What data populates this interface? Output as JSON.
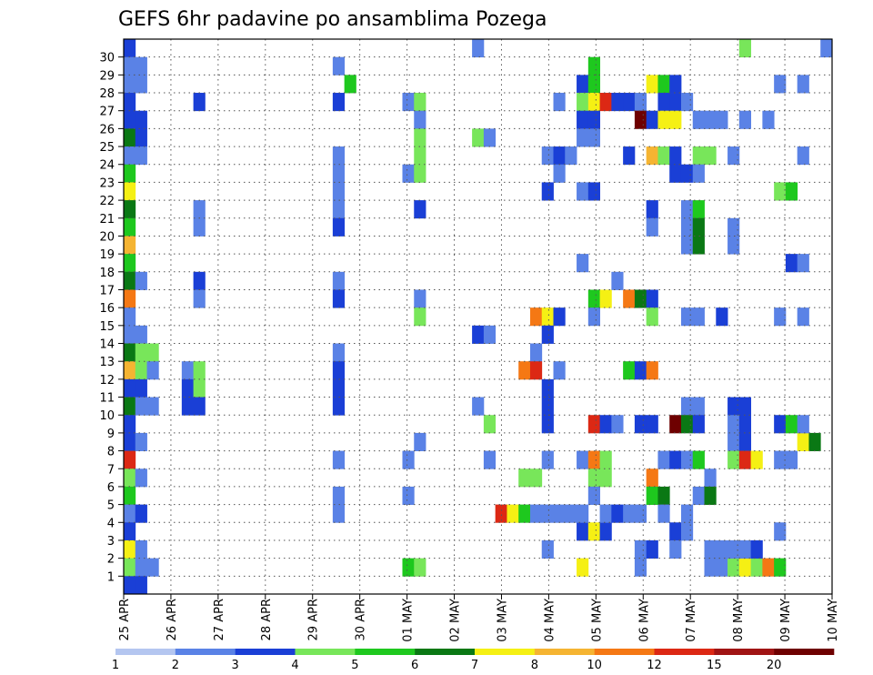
{
  "chart_data": {
    "type": "heatmap",
    "title": "GEFS 6hr padavine po ansamblima Pozega",
    "x_labels": [
      "25 APR",
      "26 APR",
      "27 APR",
      "28 APR",
      "29 APR",
      "30 APR",
      "01 MAY",
      "02 MAY",
      "03 MAY",
      "04 MAY",
      "05 MAY",
      "06 MAY",
      "07 MAY",
      "08 MAY",
      "09 MAY",
      "10 MAY"
    ],
    "y_labels": [
      "1",
      "2",
      "3",
      "4",
      "5",
      "6",
      "7",
      "8",
      "9",
      "10",
      "11",
      "12",
      "13",
      "14",
      "15",
      "16",
      "17",
      "18",
      "19",
      "20",
      "21",
      "22",
      "23",
      "24",
      "25",
      "26",
      "27",
      "28",
      "29",
      "30"
    ],
    "x_steps": 61,
    "y_members": 31,
    "grid": true,
    "colorbar": {
      "levels": [
        "1",
        "2",
        "3",
        "4",
        "5",
        "6",
        "7",
        "8",
        "10",
        "12",
        "15",
        "20"
      ],
      "colors": [
        "#b4c6f0",
        "#5a82e6",
        "#1a3fd6",
        "#78e65a",
        "#1ec81e",
        "#0a7814",
        "#f5f014",
        "#f5b432",
        "#f57814",
        "#dc2814",
        "#a01414",
        "#6e0000"
      ]
    },
    "cells": [
      [
        0,
        30,
        2
      ],
      [
        0,
        29,
        1
      ],
      [
        0,
        28,
        1
      ],
      [
        0,
        27,
        2
      ],
      [
        0,
        26,
        2
      ],
      [
        0,
        25,
        5
      ],
      [
        0,
        24,
        1
      ],
      [
        0,
        23,
        4
      ],
      [
        0,
        22,
        6
      ],
      [
        0,
        21,
        5
      ],
      [
        0,
        20,
        4
      ],
      [
        0,
        19,
        7
      ],
      [
        0,
        18,
        4
      ],
      [
        0,
        17,
        5
      ],
      [
        0,
        16,
        8
      ],
      [
        0,
        15,
        1
      ],
      [
        0,
        14,
        1
      ],
      [
        0,
        13,
        5
      ],
      [
        0,
        12,
        7
      ],
      [
        0,
        11,
        2
      ],
      [
        0,
        10,
        5
      ],
      [
        0,
        9,
        2
      ],
      [
        0,
        8,
        2
      ],
      [
        0,
        7,
        9
      ],
      [
        0,
        6,
        3
      ],
      [
        0,
        5,
        4
      ],
      [
        0,
        4,
        1
      ],
      [
        0,
        3,
        2
      ],
      [
        0,
        2,
        6
      ],
      [
        0,
        1,
        3
      ],
      [
        0,
        0,
        2
      ],
      [
        1,
        29,
        1
      ],
      [
        1,
        28,
        1
      ],
      [
        1,
        26,
        2
      ],
      [
        1,
        25,
        2
      ],
      [
        1,
        24,
        1
      ],
      [
        1,
        17,
        1
      ],
      [
        1,
        14,
        1
      ],
      [
        1,
        13,
        3
      ],
      [
        1,
        12,
        3
      ],
      [
        1,
        11,
        2
      ],
      [
        1,
        10,
        1
      ],
      [
        1,
        8,
        1
      ],
      [
        1,
        6,
        1
      ],
      [
        1,
        4,
        2
      ],
      [
        1,
        2,
        1
      ],
      [
        1,
        1,
        1
      ],
      [
        1,
        0,
        2
      ],
      [
        2,
        13,
        3
      ],
      [
        2,
        12,
        1
      ],
      [
        2,
        10,
        1
      ],
      [
        2,
        1,
        1
      ],
      [
        5,
        12,
        1
      ],
      [
        5,
        10,
        2
      ],
      [
        5,
        11,
        2
      ],
      [
        6,
        27,
        2
      ],
      [
        6,
        21,
        1
      ],
      [
        6,
        20,
        1
      ],
      [
        6,
        17,
        2
      ],
      [
        6,
        16,
        1
      ],
      [
        6,
        12,
        3
      ],
      [
        6,
        11,
        3
      ],
      [
        6,
        10,
        2
      ],
      [
        18,
        29,
        1
      ],
      [
        18,
        27,
        2
      ],
      [
        18,
        24,
        1
      ],
      [
        18,
        23,
        1
      ],
      [
        18,
        22,
        1
      ],
      [
        18,
        21,
        1
      ],
      [
        18,
        20,
        2
      ],
      [
        18,
        17,
        1
      ],
      [
        18,
        16,
        2
      ],
      [
        18,
        13,
        1
      ],
      [
        18,
        12,
        2
      ],
      [
        18,
        11,
        2
      ],
      [
        18,
        10,
        2
      ],
      [
        18,
        7,
        1
      ],
      [
        18,
        5,
        1
      ],
      [
        18,
        4,
        1
      ],
      [
        19,
        28,
        4
      ],
      [
        24,
        27,
        1
      ],
      [
        24,
        23,
        1
      ],
      [
        24,
        7,
        1
      ],
      [
        24,
        5,
        1
      ],
      [
        24,
        1,
        4
      ],
      [
        25,
        27,
        3
      ],
      [
        25,
        26,
        1
      ],
      [
        25,
        25,
        3
      ],
      [
        25,
        24,
        3
      ],
      [
        25,
        23,
        3
      ],
      [
        25,
        21,
        2
      ],
      [
        25,
        16,
        1
      ],
      [
        25,
        15,
        3
      ],
      [
        25,
        8,
        1
      ],
      [
        25,
        1,
        3
      ],
      [
        30,
        30,
        1
      ],
      [
        30,
        25,
        3
      ],
      [
        30,
        14,
        2
      ],
      [
        30,
        10,
        1
      ],
      [
        31,
        25,
        1
      ],
      [
        31,
        14,
        1
      ],
      [
        31,
        9,
        3
      ],
      [
        31,
        7,
        1
      ],
      [
        32,
        4,
        9
      ],
      [
        33,
        4,
        6
      ],
      [
        34,
        4,
        4
      ],
      [
        34,
        12,
        8
      ],
      [
        34,
        6,
        3
      ],
      [
        35,
        15,
        8
      ],
      [
        35,
        13,
        1
      ],
      [
        35,
        12,
        9
      ],
      [
        35,
        6,
        3
      ],
      [
        35,
        4,
        1
      ],
      [
        36,
        15,
        6
      ],
      [
        36,
        24,
        1
      ],
      [
        36,
        22,
        2
      ],
      [
        36,
        14,
        2
      ],
      [
        36,
        11,
        2
      ],
      [
        36,
        10,
        2
      ],
      [
        36,
        9,
        2
      ],
      [
        36,
        7,
        1
      ],
      [
        36,
        4,
        1
      ],
      [
        36,
        2,
        1
      ],
      [
        37,
        12,
        1
      ],
      [
        37,
        24,
        2
      ],
      [
        37,
        27,
        1
      ],
      [
        37,
        23,
        1
      ],
      [
        37,
        15,
        2
      ],
      [
        37,
        4,
        1
      ],
      [
        38,
        24,
        1
      ],
      [
        38,
        4,
        1
      ],
      [
        39,
        28,
        2
      ],
      [
        39,
        27,
        3
      ],
      [
        39,
        26,
        2
      ],
      [
        39,
        25,
        1
      ],
      [
        39,
        22,
        1
      ],
      [
        39,
        18,
        1
      ],
      [
        39,
        7,
        1
      ],
      [
        39,
        3,
        2
      ],
      [
        39,
        4,
        1
      ],
      [
        39,
        1,
        6
      ],
      [
        40,
        29,
        4
      ],
      [
        40,
        28,
        4
      ],
      [
        40,
        27,
        6
      ],
      [
        40,
        26,
        2
      ],
      [
        40,
        25,
        1
      ],
      [
        40,
        22,
        2
      ],
      [
        40,
        16,
        4
      ],
      [
        40,
        15,
        1
      ],
      [
        40,
        9,
        9
      ],
      [
        40,
        7,
        8
      ],
      [
        40,
        6,
        3
      ],
      [
        40,
        5,
        1
      ],
      [
        40,
        3,
        6
      ],
      [
        41,
        27,
        9
      ],
      [
        41,
        16,
        6
      ],
      [
        41,
        9,
        2
      ],
      [
        41,
        7,
        3
      ],
      [
        41,
        6,
        3
      ],
      [
        41,
        3,
        2
      ],
      [
        41,
        4,
        1
      ],
      [
        42,
        27,
        2
      ],
      [
        42,
        17,
        1
      ],
      [
        42,
        4,
        2
      ],
      [
        42,
        9,
        1
      ],
      [
        43,
        27,
        2
      ],
      [
        43,
        24,
        2
      ],
      [
        43,
        12,
        4
      ],
      [
        43,
        16,
        8
      ],
      [
        43,
        4,
        1
      ],
      [
        44,
        27,
        1
      ],
      [
        44,
        26,
        11
      ],
      [
        44,
        16,
        5
      ],
      [
        44,
        12,
        2
      ],
      [
        44,
        9,
        2
      ],
      [
        44,
        4,
        1
      ],
      [
        44,
        1,
        1
      ],
      [
        44,
        2,
        1
      ],
      [
        45,
        28,
        6
      ],
      [
        45,
        26,
        2
      ],
      [
        45,
        16,
        2
      ],
      [
        45,
        24,
        7
      ],
      [
        45,
        21,
        2
      ],
      [
        45,
        20,
        1
      ],
      [
        45,
        15,
        3
      ],
      [
        45,
        12,
        8
      ],
      [
        45,
        9,
        2
      ],
      [
        45,
        6,
        8
      ],
      [
        45,
        5,
        4
      ],
      [
        45,
        2,
        2
      ],
      [
        46,
        28,
        4
      ],
      [
        46,
        27,
        2
      ],
      [
        46,
        26,
        6
      ],
      [
        46,
        24,
        3
      ],
      [
        46,
        7,
        1
      ],
      [
        46,
        5,
        5
      ],
      [
        46,
        4,
        1
      ],
      [
        47,
        28,
        2
      ],
      [
        47,
        27,
        2
      ],
      [
        47,
        26,
        6
      ],
      [
        47,
        24,
        2
      ],
      [
        47,
        23,
        2
      ],
      [
        47,
        9,
        11
      ],
      [
        47,
        7,
        2
      ],
      [
        47,
        3,
        2
      ],
      [
        47,
        2,
        1
      ],
      [
        48,
        27,
        1
      ],
      [
        48,
        23,
        2
      ],
      [
        48,
        21,
        1
      ],
      [
        48,
        20,
        1
      ],
      [
        48,
        19,
        1
      ],
      [
        48,
        15,
        1
      ],
      [
        48,
        10,
        1
      ],
      [
        48,
        9,
        5
      ],
      [
        48,
        7,
        1
      ],
      [
        48,
        4,
        1
      ],
      [
        48,
        3,
        1
      ],
      [
        49,
        26,
        1
      ],
      [
        49,
        24,
        3
      ],
      [
        49,
        23,
        1
      ],
      [
        49,
        21,
        4
      ],
      [
        49,
        20,
        5
      ],
      [
        49,
        19,
        5
      ],
      [
        49,
        15,
        1
      ],
      [
        49,
        10,
        1
      ],
      [
        49,
        9,
        2
      ],
      [
        49,
        7,
        4
      ],
      [
        49,
        5,
        1
      ],
      [
        50,
        24,
        3
      ],
      [
        50,
        26,
        1
      ],
      [
        50,
        6,
        1
      ],
      [
        50,
        5,
        5
      ],
      [
        50,
        1,
        1
      ],
      [
        50,
        2,
        1
      ],
      [
        51,
        26,
        1
      ],
      [
        51,
        15,
        2
      ],
      [
        51,
        1,
        1
      ],
      [
        51,
        2,
        1
      ],
      [
        52,
        24,
        1
      ],
      [
        52,
        20,
        1
      ],
      [
        52,
        19,
        1
      ],
      [
        52,
        10,
        2
      ],
      [
        52,
        9,
        1
      ],
      [
        52,
        8,
        1
      ],
      [
        52,
        7,
        3
      ],
      [
        52,
        1,
        3
      ],
      [
        52,
        2,
        1
      ],
      [
        53,
        30,
        3
      ],
      [
        53,
        26,
        1
      ],
      [
        53,
        10,
        2
      ],
      [
        53,
        9,
        2
      ],
      [
        53,
        8,
        2
      ],
      [
        53,
        7,
        9
      ],
      [
        53,
        1,
        6
      ],
      [
        53,
        2,
        1
      ],
      [
        54,
        7,
        6
      ],
      [
        54,
        1,
        3
      ],
      [
        54,
        2,
        2
      ],
      [
        55,
        26,
        1
      ],
      [
        55,
        1,
        8
      ],
      [
        56,
        28,
        1
      ],
      [
        56,
        22,
        3
      ],
      [
        56,
        15,
        1
      ],
      [
        56,
        9,
        2
      ],
      [
        56,
        7,
        1
      ],
      [
        56,
        1,
        4
      ],
      [
        56,
        3,
        1
      ],
      [
        57,
        22,
        4
      ],
      [
        57,
        18,
        2
      ],
      [
        57,
        9,
        4
      ],
      [
        57,
        7,
        1
      ],
      [
        58,
        28,
        1
      ],
      [
        58,
        24,
        1
      ],
      [
        58,
        18,
        1
      ],
      [
        58,
        15,
        1
      ],
      [
        58,
        8,
        6
      ],
      [
        58,
        9,
        1
      ],
      [
        59,
        8,
        5
      ],
      [
        60,
        30,
        1
      ]
    ]
  }
}
